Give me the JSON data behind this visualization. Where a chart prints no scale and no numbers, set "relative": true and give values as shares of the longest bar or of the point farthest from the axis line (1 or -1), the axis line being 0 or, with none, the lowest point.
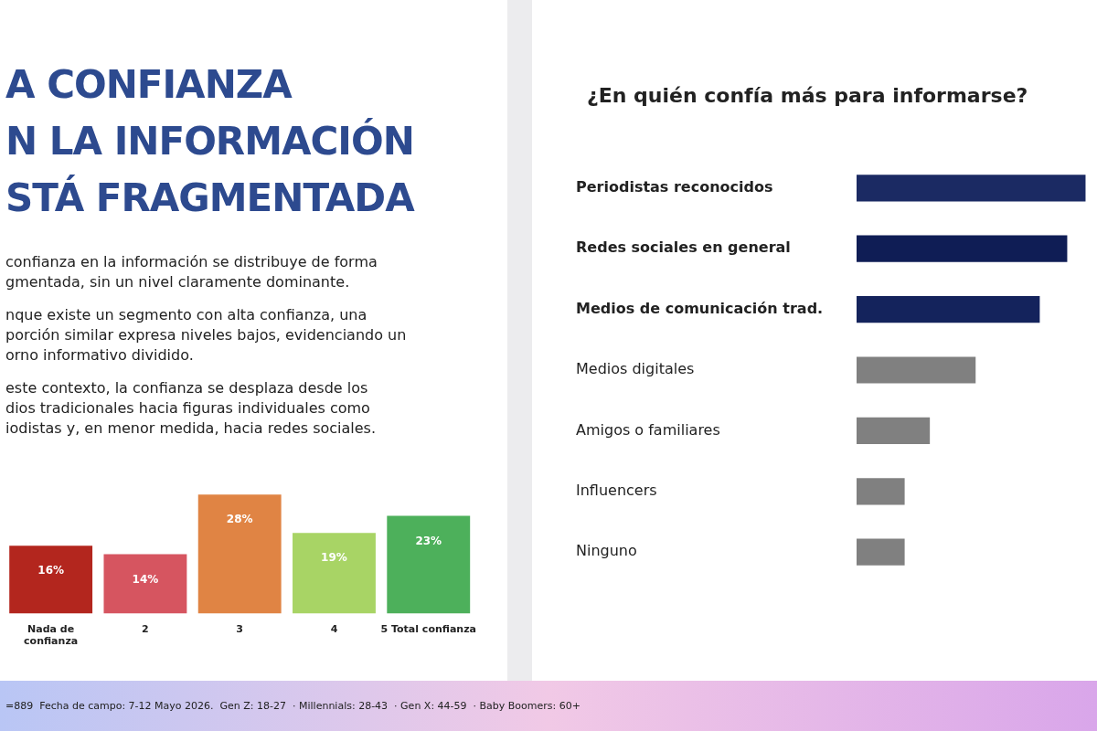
{
  "chart_data": [
    {
      "type": "bar",
      "title": "A CONFIANZA\nN LA INFORMACIÓN\nSTÁ FRAGMENTADA",
      "annotations": [
        "confianza en la información se distribuye de forma\ngmentada, sin un nivel claramente dominante.",
        "nque existe un segmento con alta confianza, una\nporción similar expresa niveles bajos, evidenciando un\norno informativo dividido.",
        "este contexto, la confianza se desplaza desde los\ndios tradicionales hacia figuras individuales como\niodistas y, en menor medida, hacia redes sociales."
      ],
      "categories": [
        "Nada de\nconfianza",
        "2",
        "3",
        "4",
        "5 Total confianza"
      ],
      "values": [
        16,
        14,
        28,
        19,
        23
      ],
      "colors": [
        "#b3261e",
        "#d65560",
        "#e08444",
        "#a8d465",
        "#4db05b"
      ],
      "value_labels": [
        "16%",
        "14%",
        "28%",
        "19%",
        "23%"
      ]
    },
    {
      "type": "bar",
      "orientation": "horizontal",
      "relative": true,
      "title": "¿En quién confía más para informarse?",
      "categories": [
        "Periodistas reconocidos",
        "Redes sociales en general",
        "Medios de comunicación trad.",
        "Medios digitales",
        "Amigos o familiares",
        "Influencers",
        "Ninguno"
      ],
      "values": [
        1,
        0.92,
        0.8,
        0.52,
        0.32,
        0.21,
        0.21
      ],
      "colors": [
        "#1b2a63",
        "#0f1d55",
        "#14235c",
        "#808080",
        "#808080",
        "#808080",
        "#808080"
      ],
      "annotations": [
        "=889  Fecha de campo: 7-12 Mayo 2026.  Gen Z: 18-27  · Millennials: 28-43  · Gen X: 44-59  · Baby Boomers: 60+"
      ]
    }
  ]
}
